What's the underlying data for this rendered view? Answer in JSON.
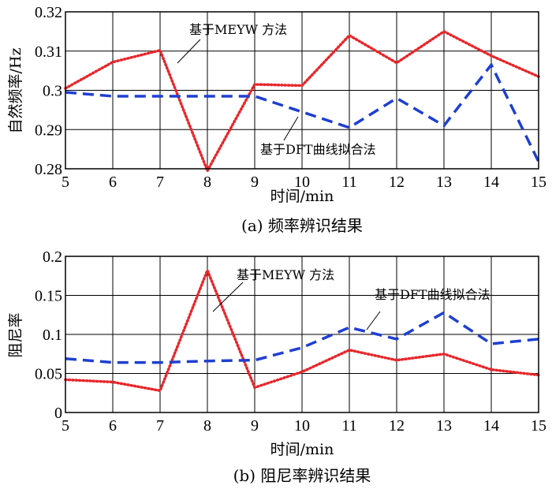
{
  "chart_data": [
    {
      "type": "line",
      "caption": "(a) 频率辨识结果",
      "xlabel": "时间/min",
      "ylabel": "自然频率/Hz",
      "xlim": [
        5,
        15
      ],
      "ylim": [
        0.28,
        0.32
      ],
      "xticks": [
        "5",
        "6",
        "7",
        "8",
        "9",
        "10",
        "11",
        "12",
        "13",
        "14",
        "15"
      ],
      "yticks": [
        "0.28",
        "0.29",
        "0.3",
        "0.31",
        "0.32"
      ],
      "grid": true,
      "x": [
        5,
        6,
        7,
        8,
        9,
        10,
        11,
        12,
        13,
        14,
        15
      ],
      "series": [
        {
          "color": "#e8262a",
          "dash": "dotted",
          "values": [
            0.3005,
            0.3072,
            0.3102,
            0.2795,
            0.3015,
            0.3012,
            0.314,
            0.307,
            0.315,
            0.3088,
            0.3035
          ]
        },
        {
          "color": "#1f3fd1",
          "dash": "dashed",
          "values": [
            0.2995,
            0.2985,
            0.2985,
            0.2985,
            0.2985,
            0.2945,
            0.2905,
            0.298,
            0.291,
            0.3065,
            0.2818
          ]
        }
      ],
      "annotations": [
        {
          "text": "基于MEYW 方法",
          "target": [
            7.1,
            0.31
          ]
        },
        {
          "text": "基于DFT曲线拟合法",
          "target": [
            9.4,
            0.2965
          ]
        }
      ]
    },
    {
      "type": "line",
      "caption": "(b) 阻尼率辨识结果",
      "xlabel": "时间/min",
      "ylabel": "阻尼率",
      "xlim": [
        5,
        15
      ],
      "ylim": [
        0,
        0.2
      ],
      "xticks": [
        "5",
        "6",
        "7",
        "8",
        "9",
        "10",
        "11",
        "12",
        "13",
        "14",
        "15"
      ],
      "yticks": [
        "0",
        "0.05",
        "0.1",
        "0.15",
        "0.2"
      ],
      "grid": true,
      "x": [
        5,
        6,
        7,
        8,
        9,
        10,
        11,
        12,
        13,
        14,
        15
      ],
      "series": [
        {
          "color": "#e8262a",
          "dash": "dotted",
          "values": [
            0.042,
            0.039,
            0.028,
            0.182,
            0.032,
            0.052,
            0.08,
            0.067,
            0.075,
            0.055,
            0.048
          ]
        },
        {
          "color": "#1f3fd1",
          "dash": "dashed",
          "values": [
            0.069,
            0.064,
            0.064,
            0.066,
            0.067,
            0.083,
            0.109,
            0.094,
            0.128,
            0.088,
            0.094
          ]
        }
      ],
      "annotations": [
        {
          "text": "基于MEYW 方法",
          "target": [
            8.15,
            0.168
          ]
        },
        {
          "text": "基于DFT曲线拟合法",
          "target": [
            11.6,
            0.106
          ]
        }
      ]
    }
  ]
}
